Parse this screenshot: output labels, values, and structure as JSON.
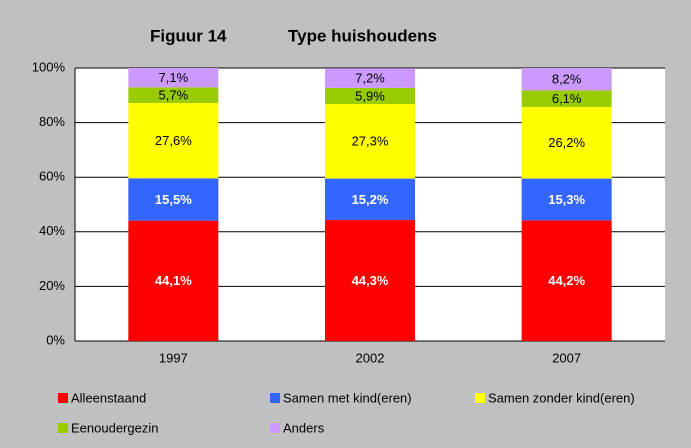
{
  "chart_data": {
    "type": "stacked_bar",
    "figure_label": "Figuur 14",
    "title": "Type huishoudens",
    "categories": [
      "1997",
      "2002",
      "2007"
    ],
    "series": [
      {
        "name": "Alleenstaand",
        "color": "#ff0000",
        "values": [
          44.1,
          44.3,
          44.2
        ],
        "value_labels": [
          "44,1%",
          "44,3%",
          "44,2%"
        ]
      },
      {
        "name": "Samen met kind(eren)",
        "color": "#3366ff",
        "values": [
          15.5,
          15.2,
          15.3
        ],
        "value_labels": [
          "15,5%",
          "15,2%",
          "15,3%"
        ]
      },
      {
        "name": "Samen zonder kind(eren)",
        "color": "#ffff00",
        "values": [
          27.6,
          27.3,
          26.2
        ],
        "value_labels": [
          "27,6%",
          "27,3%",
          "26,2%"
        ]
      },
      {
        "name": "Eenoudergezin",
        "color": "#99cc00",
        "values": [
          5.7,
          5.9,
          6.1
        ],
        "value_labels": [
          "5,7%",
          "5,9%",
          "6,1%"
        ]
      },
      {
        "name": "Anders",
        "color": "#cc99ff",
        "values": [
          7.1,
          7.2,
          8.2
        ],
        "value_labels": [
          "7,1%",
          "7,2%",
          "8,2%"
        ]
      }
    ],
    "ylim": [
      0,
      100
    ],
    "yticks": [
      {
        "value": 0,
        "label": "0%"
      },
      {
        "value": 20,
        "label": "20%"
      },
      {
        "value": 40,
        "label": "40%"
      },
      {
        "value": 60,
        "label": "60%"
      },
      {
        "value": 80,
        "label": "80%"
      },
      {
        "value": 100,
        "label": "100%"
      }
    ],
    "grid": true
  }
}
